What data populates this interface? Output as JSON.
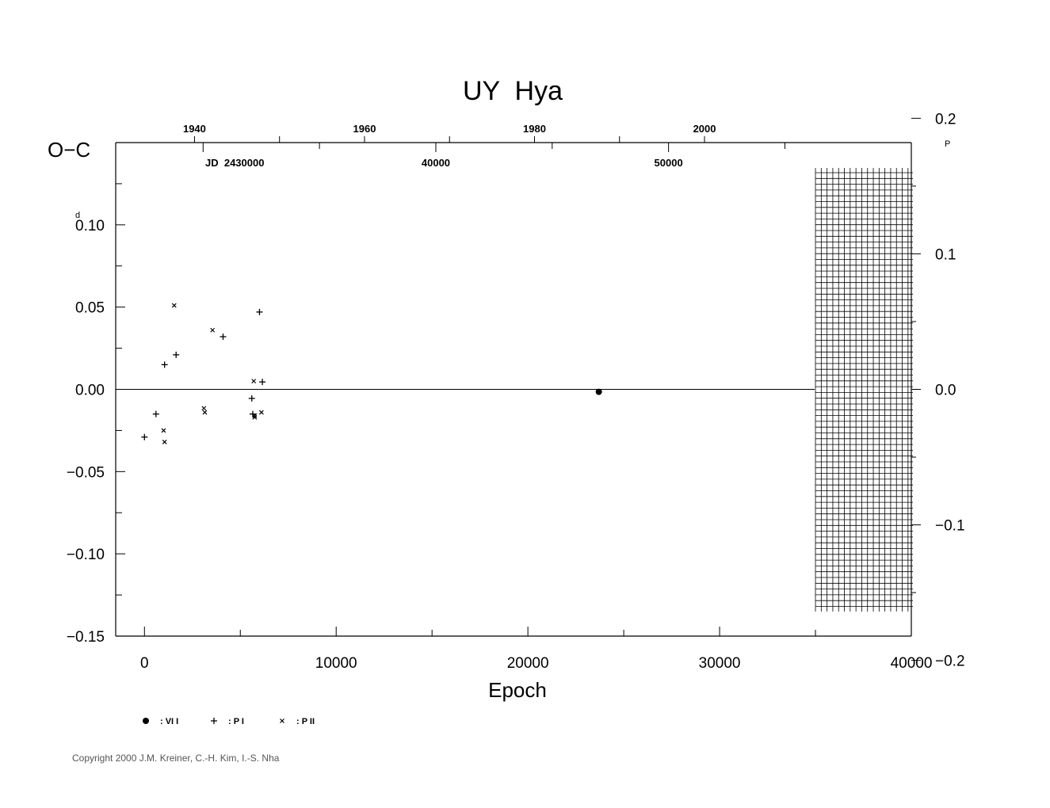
{
  "chart_data": {
    "type": "scatter",
    "title": "UY  Hya",
    "xlabel": "Epoch",
    "ylabel": "O−C",
    "ylabel_unit": "d",
    "right_unit": "P",
    "xlim": [
      -1500,
      40000
    ],
    "ylim": [
      -0.15,
      0.15
    ],
    "x_ticks": [
      0,
      10000,
      20000,
      30000,
      40000
    ],
    "x_tick_labels": [
      "0",
      "10000",
      "20000",
      "30000",
      "40000"
    ],
    "y_ticks": [
      -0.15,
      -0.1,
      -0.05,
      0.0,
      0.05,
      0.1
    ],
    "y_tick_labels": [
      "−0.15",
      "−0.10",
      "−0.05",
      "0.00",
      "0.05",
      "0.10"
    ],
    "y_top_label": "0.10",
    "right_axis": {
      "period_days": 0.8238,
      "ticks": [
        -0.2,
        -0.1,
        0.0,
        0.1,
        0.2
      ],
      "tick_labels": [
        "−0.2",
        "−0.1",
        "0.0",
        "0.1",
        "0.2"
      ],
      "top_label": "0.2"
    },
    "top_year_axis": {
      "ticks": [
        1940,
        1960,
        1980,
        2000
      ],
      "tick_labels": [
        "1940",
        "1960",
        "1980",
        "2000"
      ],
      "minor_ticks": [
        1930,
        1950,
        1970,
        1990
      ]
    },
    "top_jd_axis": {
      "prefix": "JD  2430000",
      "ticks": [
        30000,
        40000,
        50000
      ],
      "tick_labels": [
        "40000",
        "50000"
      ]
    },
    "zero_line": true,
    "hatched_region": {
      "x_from": 35000,
      "x_to": 40000
    },
    "series": [
      {
        "name": ": VI I",
        "marker": "dot",
        "x": [
          23700
        ],
        "y": [
          -0.0015
        ]
      },
      {
        "name": ": P I",
        "marker": "plus",
        "x": [
          0,
          600,
          1050,
          1650,
          4100,
          5600,
          5650,
          6000,
          6150
        ],
        "y": [
          -0.029,
          -0.015,
          0.015,
          0.021,
          0.032,
          -0.0055,
          -0.015,
          0.047,
          0.0045
        ]
      },
      {
        "name": ": P II",
        "marker": "cross",
        "x": [
          1000,
          1050,
          1550,
          3100,
          3150,
          3550,
          5700,
          5750,
          5750,
          6100
        ],
        "y": [
          -0.025,
          -0.032,
          0.051,
          -0.0115,
          -0.014,
          0.036,
          0.005,
          -0.016,
          -0.017,
          -0.014
        ]
      }
    ]
  },
  "copyright": "Copyright 2000 J.M. Kreiner, C.-H. Kim, I.-S. Nha"
}
